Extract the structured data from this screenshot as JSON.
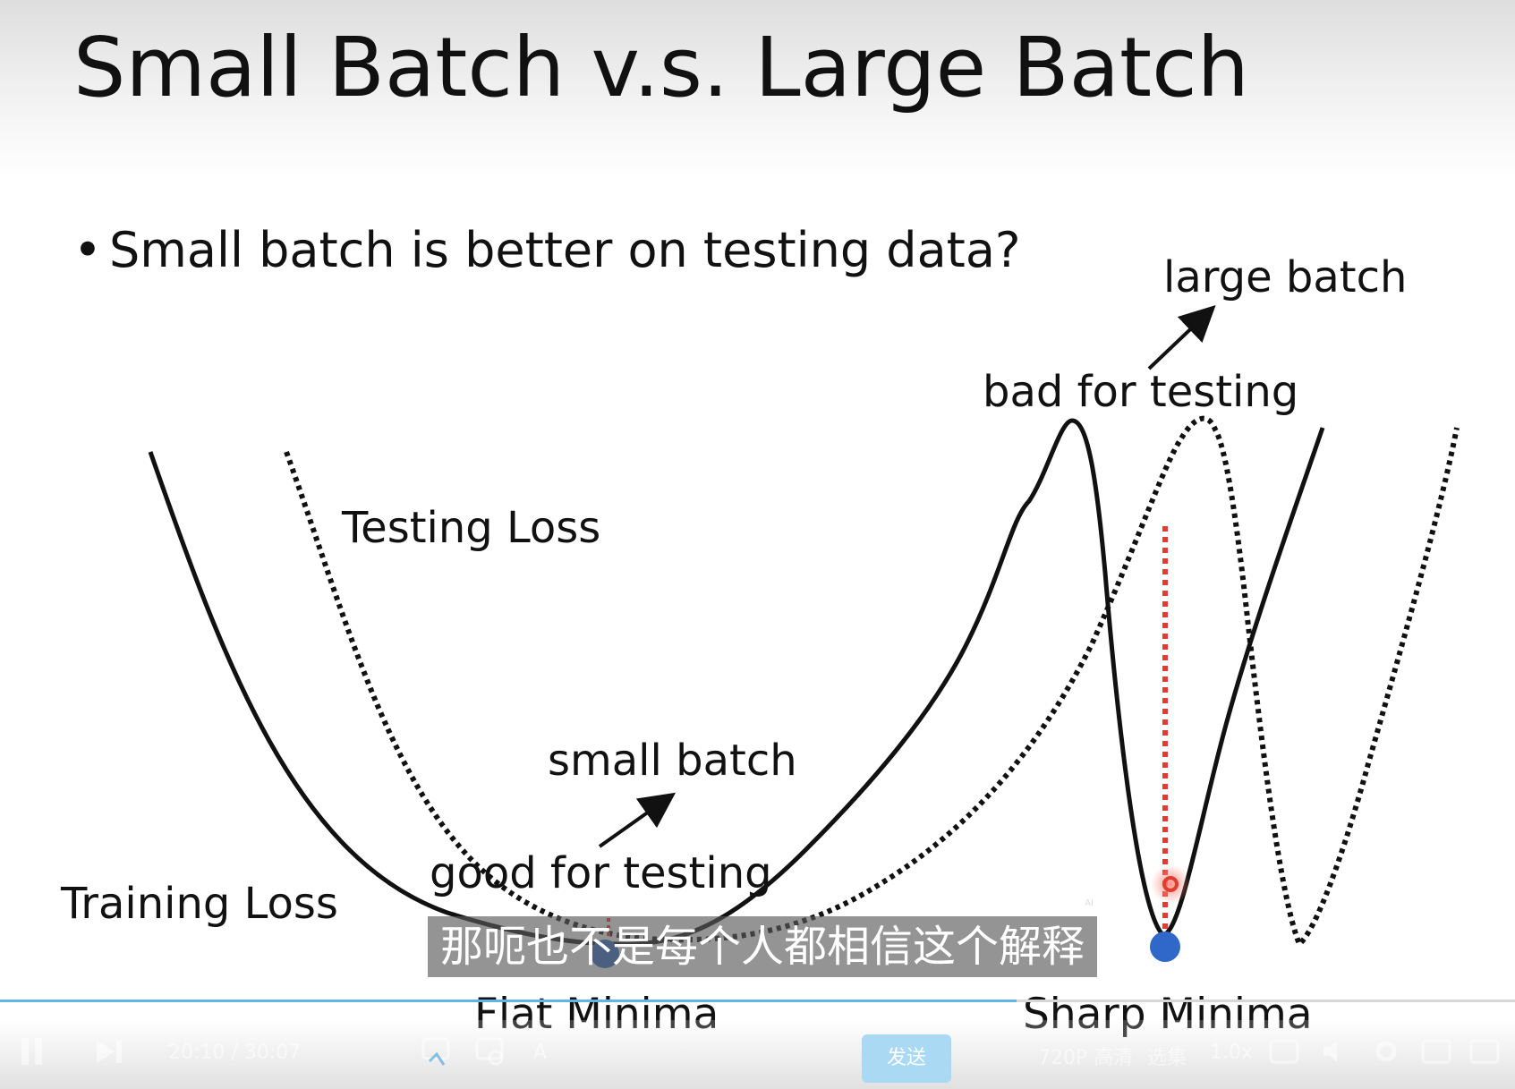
{
  "slide": {
    "title": "Small Batch v.s. Large Batch",
    "bullet": "Small batch is better on testing data?",
    "labels": {
      "testing_loss": "Testing Loss",
      "training_loss": "Training Loss",
      "small_batch": "small batch",
      "good_for_testing": "good for testing",
      "large_batch": "large batch",
      "bad_for_testing": "bad for testing",
      "flat_minima": "Flat Minima",
      "sharp_minima": "Sharp Minima"
    }
  },
  "subtitle": {
    "text": "那呃也不是每个人都相信这个解释",
    "ai_mark": "AI"
  },
  "player": {
    "progress_fraction": 0.671,
    "time_current": "20:10",
    "time_total": "30:07",
    "quality": "720P 高清",
    "select": "选集",
    "speed": "1.0x",
    "send_label": "发送"
  },
  "colors": {
    "progress": "#5fb4e8",
    "marker_blue": "#2f68c8",
    "marker_red": "#e23b30",
    "send_button": "#a9d9f3"
  }
}
